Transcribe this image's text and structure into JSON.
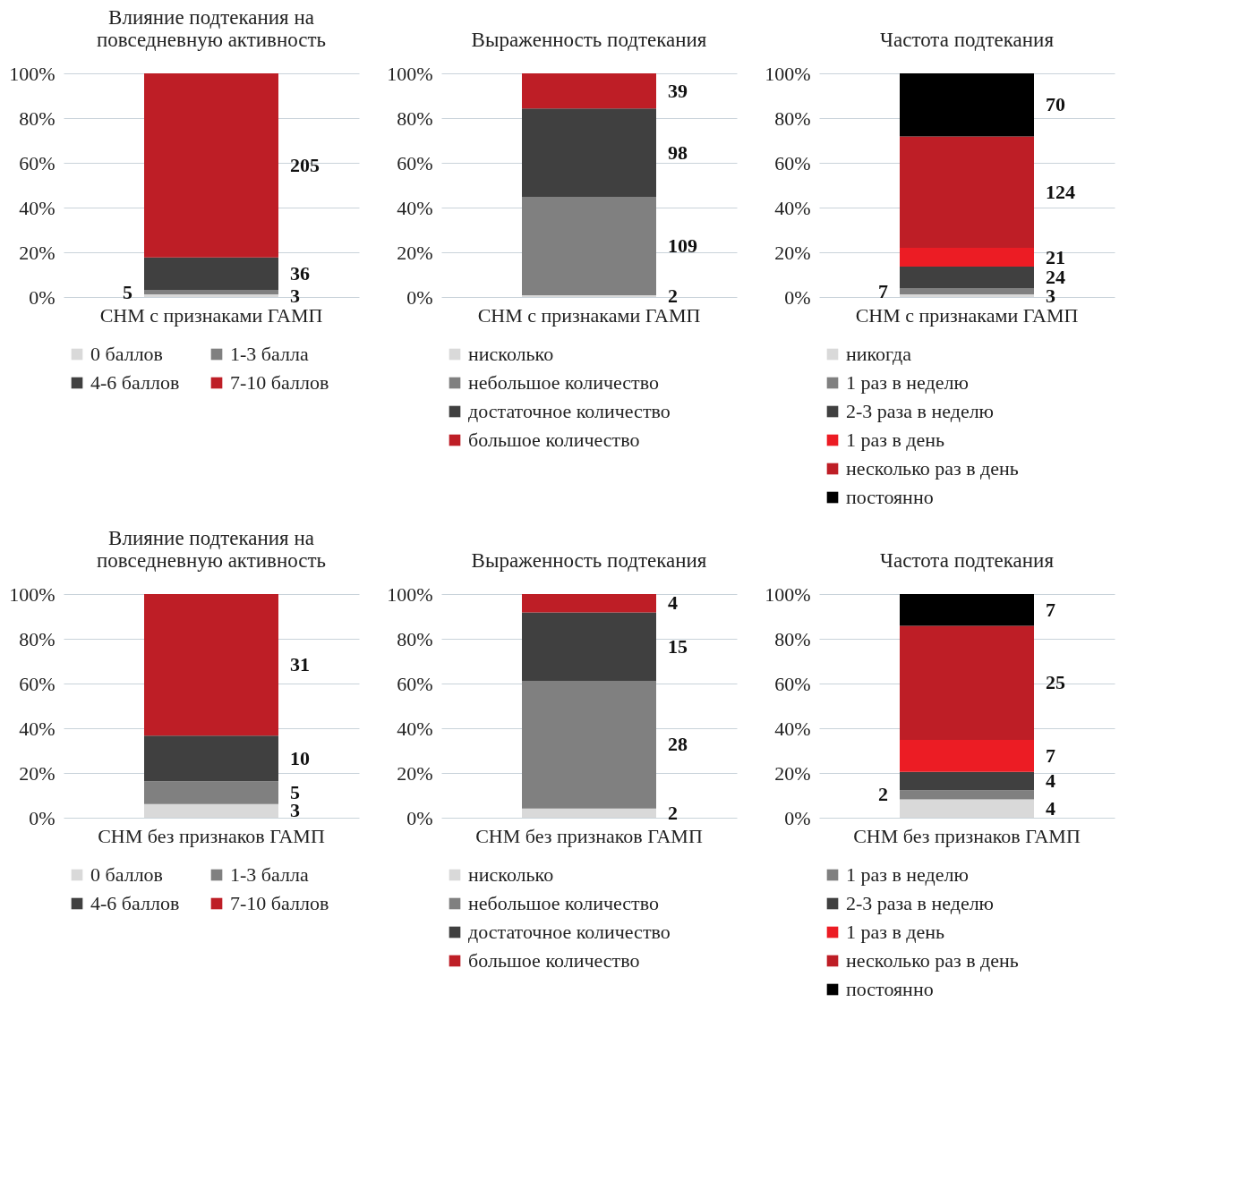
{
  "chart_data": [
    {
      "type": "bar",
      "title": "Влияние подтекания на повседневную активность",
      "categories": [
        "СНМ с признаками ГАМП"
      ],
      "stacked": true,
      "ylim": [
        0,
        100
      ],
      "yticks": [
        {
          "value": 0,
          "label": "0%"
        },
        {
          "value": 20,
          "label": "20%"
        },
        {
          "value": 40,
          "label": "40%"
        },
        {
          "value": 60,
          "label": "60%"
        },
        {
          "value": 80,
          "label": "80%"
        },
        {
          "value": 100,
          "label": "100%"
        }
      ],
      "grid": "y",
      "legend": "bottom",
      "series": [
        {
          "name": "0 баллов",
          "color": "#d9d9d9",
          "values": [
            1.2
          ]
        },
        {
          "name": "1-3 балла",
          "color": "#808080",
          "values": [
            2.0
          ]
        },
        {
          "name": "4-6 баллов",
          "color": "#404040",
          "values": [
            14.5
          ]
        },
        {
          "name": "7-10 баллов",
          "color": "#be1e26",
          "values": [
            82.3
          ]
        }
      ],
      "annotations": [
        "3",
        "5",
        "36",
        "205"
      ]
    },
    {
      "type": "bar",
      "title": "Выраженность подтекания",
      "categories": [
        "СНМ с признаками ГАМП"
      ],
      "stacked": true,
      "ylim": [
        0,
        100
      ],
      "yticks": [
        {
          "value": 0,
          "label": "0%"
        },
        {
          "value": 20,
          "label": "20%"
        },
        {
          "value": 40,
          "label": "40%"
        },
        {
          "value": 60,
          "label": "60%"
        },
        {
          "value": 80,
          "label": "80%"
        },
        {
          "value": 100,
          "label": "100%"
        }
      ],
      "grid": "y",
      "legend": "bottom",
      "series": [
        {
          "name": "нисколько",
          "color": "#d9d9d9",
          "values": [
            0.8
          ]
        },
        {
          "name": "небольшое количество",
          "color": "#808080",
          "values": [
            44.0
          ]
        },
        {
          "name": "достаточное количество",
          "color": "#404040",
          "values": [
            39.5
          ]
        },
        {
          "name": "большое количество",
          "color": "#be1e26",
          "values": [
            15.7
          ]
        }
      ],
      "annotations": [
        "2",
        "109",
        "98",
        "39"
      ]
    },
    {
      "type": "bar",
      "title": "Частота подтекания",
      "categories": [
        "СНМ с признаками ГАМП"
      ],
      "stacked": true,
      "ylim": [
        0,
        100
      ],
      "yticks": [
        {
          "value": 0,
          "label": "0%"
        },
        {
          "value": 20,
          "label": "20%"
        },
        {
          "value": 40,
          "label": "40%"
        },
        {
          "value": 60,
          "label": "60%"
        },
        {
          "value": 80,
          "label": "80%"
        },
        {
          "value": 100,
          "label": "100%"
        }
      ],
      "grid": "y",
      "legend": "bottom",
      "series": [
        {
          "name": "никогда",
          "color": "#d9d9d9",
          "values": [
            1.2
          ]
        },
        {
          "name": "1 раз в неделю",
          "color": "#808080",
          "values": [
            2.8
          ]
        },
        {
          "name": "2-3 раза в неделю",
          "color": "#404040",
          "values": [
            9.6
          ]
        },
        {
          "name": "1 раз в день",
          "color": "#ec1c24",
          "values": [
            8.4
          ]
        },
        {
          "name": "несколько раз в день",
          "color": "#be1e26",
          "values": [
            49.8
          ]
        },
        {
          "name": "постоянно",
          "color": "#000000",
          "values": [
            28.2
          ]
        }
      ],
      "annotations": [
        "3",
        "7",
        "24",
        "21",
        "124",
        "70"
      ]
    },
    {
      "type": "bar",
      "title": "Влияние подтекания на повседневную активность",
      "categories": [
        "СНМ без признаков ГАМП"
      ],
      "stacked": true,
      "ylim": [
        0,
        100
      ],
      "yticks": [
        {
          "value": 0,
          "label": "0%"
        },
        {
          "value": 20,
          "label": "20%"
        },
        {
          "value": 40,
          "label": "40%"
        },
        {
          "value": 60,
          "label": "60%"
        },
        {
          "value": 80,
          "label": "80%"
        },
        {
          "value": 100,
          "label": "100%"
        }
      ],
      "grid": "y",
      "legend": "bottom",
      "series": [
        {
          "name": "0 баллов",
          "color": "#d9d9d9",
          "values": [
            6.1
          ]
        },
        {
          "name": "1-3 балла",
          "color": "#808080",
          "values": [
            10.2
          ]
        },
        {
          "name": "4-6 баллов",
          "color": "#404040",
          "values": [
            20.4
          ]
        },
        {
          "name": "7-10 баллов",
          "color": "#be1e26",
          "values": [
            63.3
          ]
        }
      ],
      "annotations": [
        "3",
        "5",
        "10",
        "31"
      ]
    },
    {
      "type": "bar",
      "title": "Выраженность подтекания",
      "categories": [
        "СНМ без признаков ГАМП"
      ],
      "stacked": true,
      "ylim": [
        0,
        100
      ],
      "yticks": [
        {
          "value": 0,
          "label": "0%"
        },
        {
          "value": 20,
          "label": "20%"
        },
        {
          "value": 40,
          "label": "40%"
        },
        {
          "value": 60,
          "label": "60%"
        },
        {
          "value": 80,
          "label": "80%"
        },
        {
          "value": 100,
          "label": "100%"
        }
      ],
      "grid": "y",
      "legend": "bottom",
      "series": [
        {
          "name": "нисколько",
          "color": "#d9d9d9",
          "values": [
            4.1
          ]
        },
        {
          "name": "небольшое количество",
          "color": "#808080",
          "values": [
            57.1
          ]
        },
        {
          "name": "достаточное количество",
          "color": "#404040",
          "values": [
            30.6
          ]
        },
        {
          "name": "большое количество",
          "color": "#be1e26",
          "values": [
            8.2
          ]
        }
      ],
      "annotations": [
        "2",
        "28",
        "15",
        "4"
      ]
    },
    {
      "type": "bar",
      "title": "Частота подтекания",
      "categories": [
        "СНМ без признаков ГАМП"
      ],
      "stacked": true,
      "ylim": [
        0,
        100
      ],
      "yticks": [
        {
          "value": 0,
          "label": "0%"
        },
        {
          "value": 20,
          "label": "20%"
        },
        {
          "value": 40,
          "label": "40%"
        },
        {
          "value": 60,
          "label": "60%"
        },
        {
          "value": 80,
          "label": "80%"
        },
        {
          "value": 100,
          "label": "100%"
        }
      ],
      "grid": "y",
      "legend": "bottom",
      "series": [
        {
          "color": "#d9d9d9",
          "values": [
            8.2
          ]
        },
        {
          "name": "1 раз в неделю",
          "color": "#808080",
          "values": [
            4.1
          ]
        },
        {
          "name": "2-3 раза в неделю",
          "color": "#404040",
          "values": [
            8.2
          ]
        },
        {
          "name": "1 раз в день",
          "color": "#ec1c24",
          "values": [
            14.3
          ]
        },
        {
          "name": "несколько раз в день",
          "color": "#be1e26",
          "values": [
            51.0
          ]
        },
        {
          "name": "постоянно",
          "color": "#000000",
          "values": [
            14.2
          ]
        }
      ],
      "annotations": [
        "4",
        "2",
        "4",
        "7",
        "25",
        "7"
      ]
    }
  ]
}
